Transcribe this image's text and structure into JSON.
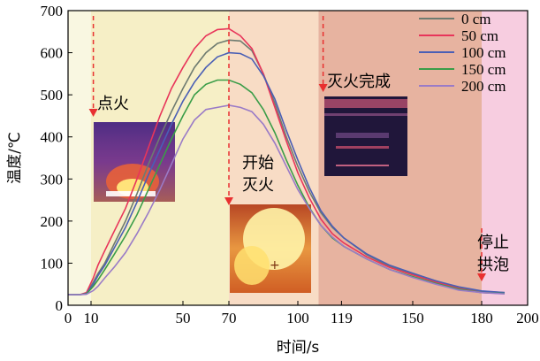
{
  "chart_data": {
    "type": "line",
    "xlabel": "时间/s",
    "ylabel": "温度/℃",
    "xlim": [
      0,
      200
    ],
    "ylim": [
      0,
      700
    ],
    "x_ticks": [
      0,
      10,
      50,
      70,
      100,
      119,
      150,
      180,
      200
    ],
    "y_ticks": [
      0,
      100,
      200,
      300,
      400,
      500,
      600,
      700
    ],
    "grid": false,
    "legend_position": "top-right",
    "phases": [
      {
        "start": 10,
        "end": 70,
        "color": "#f6efc6"
      },
      {
        "start": 70,
        "end": 109,
        "color": "#f8dcc5"
      },
      {
        "start": 109,
        "end": 180,
        "color": "#e7b3a0"
      },
      {
        "start": 180,
        "end": 200,
        "color": "#f7cde0"
      }
    ],
    "pre_phase_color": "#f9f7e1",
    "annotations": [
      {
        "x": 11,
        "lines": [
          "点火"
        ]
      },
      {
        "x": 70,
        "lines": [
          "开始",
          "灭火"
        ]
      },
      {
        "x": 111,
        "lines": [
          "灭火完成"
        ]
      },
      {
        "x": 180,
        "lines": [
          "停止",
          "拱泡"
        ]
      }
    ],
    "x": [
      0,
      5,
      8,
      11,
      13,
      16,
      20,
      25,
      30,
      35,
      40,
      45,
      50,
      55,
      60,
      65,
      70,
      75,
      80,
      85,
      90,
      95,
      100,
      105,
      110,
      115,
      120,
      130,
      140,
      150,
      160,
      170,
      180,
      190
    ],
    "series": [
      {
        "name": "0 cm",
        "color": "#6e7b70",
        "values": [
          25,
          25,
          28,
          55,
          75,
          100,
          145,
          200,
          265,
          335,
          400,
          460,
          515,
          565,
          600,
          622,
          630,
          628,
          605,
          550,
          480,
          400,
          330,
          270,
          220,
          185,
          160,
          120,
          92,
          75,
          58,
          42,
          33,
          30
        ]
      },
      {
        "name": "50 cm",
        "color": "#e8355a",
        "values": [
          25,
          25,
          30,
          65,
          95,
          130,
          175,
          230,
          300,
          375,
          450,
          515,
          565,
          610,
          640,
          655,
          657,
          640,
          610,
          550,
          470,
          390,
          315,
          255,
          205,
          170,
          148,
          115,
          90,
          72,
          55,
          40,
          30,
          28
        ]
      },
      {
        "name": "100 cm",
        "color": "#4a5fb5",
        "values": [
          25,
          25,
          28,
          50,
          70,
          95,
          135,
          185,
          245,
          310,
          370,
          430,
          485,
          530,
          565,
          590,
          600,
          598,
          585,
          545,
          490,
          415,
          345,
          280,
          225,
          188,
          160,
          122,
          95,
          76,
          58,
          44,
          34,
          30
        ]
      },
      {
        "name": "150 cm",
        "color": "#3a9d48",
        "values": [
          25,
          25,
          27,
          45,
          60,
          85,
          120,
          165,
          215,
          275,
          335,
          395,
          450,
          500,
          525,
          535,
          535,
          525,
          505,
          465,
          410,
          345,
          285,
          232,
          190,
          160,
          140,
          110,
          85,
          68,
          52,
          38,
          30,
          28
        ]
      },
      {
        "name": "200 cm",
        "color": "#9a7bc7",
        "values": [
          25,
          25,
          26,
          35,
          45,
          65,
          90,
          125,
          170,
          220,
          275,
          335,
          395,
          440,
          465,
          470,
          475,
          470,
          460,
          430,
          385,
          330,
          275,
          230,
          190,
          162,
          140,
          110,
          85,
          66,
          50,
          36,
          30,
          27
        ]
      }
    ]
  }
}
